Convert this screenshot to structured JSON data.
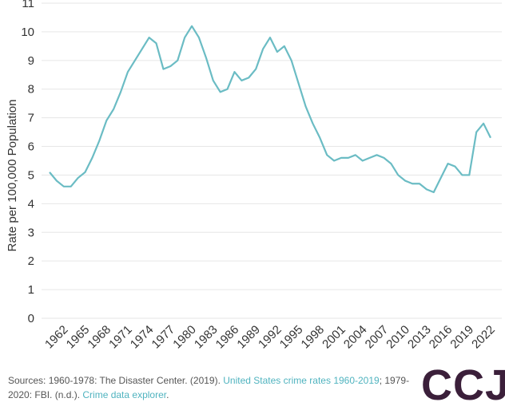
{
  "chart_data": {
    "type": "line",
    "y_label": "Rate per 100,000 Population",
    "x": [
      1960,
      1961,
      1962,
      1963,
      1964,
      1965,
      1966,
      1967,
      1968,
      1969,
      1970,
      1971,
      1972,
      1973,
      1974,
      1975,
      1976,
      1977,
      1978,
      1979,
      1980,
      1981,
      1982,
      1983,
      1984,
      1985,
      1986,
      1987,
      1988,
      1989,
      1990,
      1991,
      1992,
      1993,
      1994,
      1995,
      1996,
      1997,
      1998,
      1999,
      2000,
      2001,
      2002,
      2003,
      2004,
      2005,
      2006,
      2007,
      2008,
      2009,
      2010,
      2011,
      2012,
      2013,
      2014,
      2015,
      2016,
      2017,
      2018,
      2019,
      2020,
      2021,
      2022
    ],
    "values": [
      5.1,
      4.8,
      4.6,
      4.6,
      4.9,
      5.1,
      5.6,
      6.2,
      6.9,
      7.3,
      7.9,
      8.6,
      9.0,
      9.4,
      9.8,
      9.6,
      8.7,
      8.8,
      9.0,
      9.8,
      10.2,
      9.8,
      9.1,
      8.3,
      7.9,
      8.0,
      8.6,
      8.3,
      8.4,
      8.7,
      9.4,
      9.8,
      9.3,
      9.5,
      9.0,
      8.2,
      7.4,
      6.8,
      6.3,
      5.7,
      5.5,
      5.6,
      5.6,
      5.7,
      5.5,
      5.6,
      5.7,
      5.6,
      5.4,
      5.0,
      4.8,
      4.7,
      4.7,
      4.5,
      4.4,
      4.9,
      5.4,
      5.3,
      5.0,
      5.0,
      6.5,
      6.8,
      6.3
    ],
    "color": "#6bbcc4",
    "xlim": [
      1960,
      2022
    ],
    "xticks": [
      1962,
      1965,
      1968,
      1971,
      1974,
      1977,
      1980,
      1983,
      1986,
      1989,
      1992,
      1995,
      1998,
      2001,
      2004,
      2007,
      2010,
      2013,
      2016,
      2019,
      2022
    ],
    "ylim": [
      0,
      11
    ],
    "yticks": [
      0,
      1,
      2,
      3,
      4,
      5,
      6,
      7,
      8,
      9,
      10,
      11
    ],
    "grid": true
  },
  "footer": {
    "sources": [
      "Sources: 1960-1978: The Disaster Center. (2019). ",
      "United States crime rates 1960-2019",
      "; 1979-2020: FBI. (n.d.). ",
      "Crime data explorer",
      "."
    ],
    "logo": "CCJ"
  }
}
